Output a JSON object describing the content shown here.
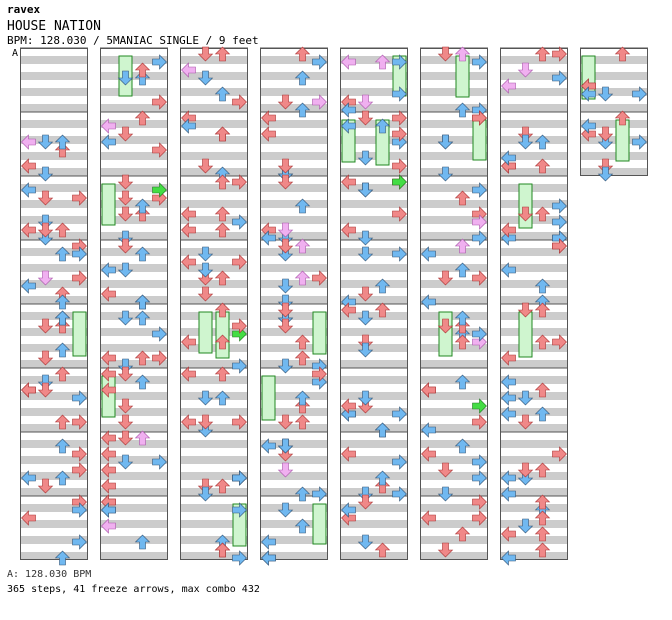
{
  "header": {
    "artist": "ravex",
    "title": "HOUSE NATION",
    "info": "BPM: 128.030 / 5MANIAC SINGLE / 9 feet"
  },
  "marker": "A",
  "footer": {
    "bpm_line": "A: 128.030 BPM",
    "stats_line": "365 steps, 41 freeze arrows, max combo 432"
  },
  "colors": {
    "band": "#cccccc",
    "border": "#555555",
    "red": "#f08888",
    "blue": "#70b8f0",
    "pink": "#f0b0f0",
    "green": "#44dd44",
    "freeze": "#cff5cf"
  },
  "chart_data": {
    "type": "table",
    "columns": 8,
    "measures_per_column": [
      8,
      8,
      8,
      8,
      8,
      8,
      8,
      2
    ],
    "lanes": [
      "left",
      "down",
      "up",
      "right"
    ],
    "steps": 365,
    "freeze_arrows": 41,
    "max_combo": 432,
    "bpm": 128.03
  }
}
